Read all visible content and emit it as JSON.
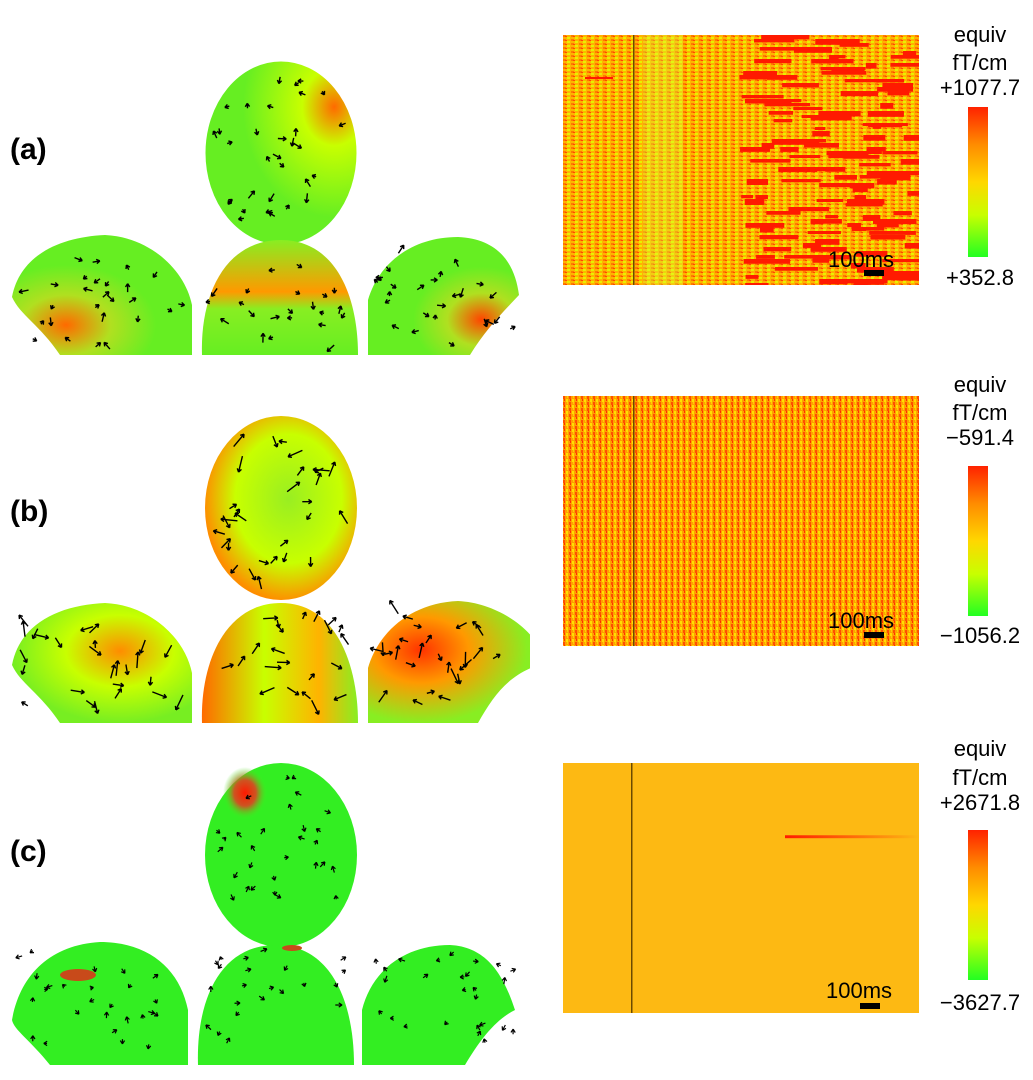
{
  "panels": [
    {
      "label": "(a)",
      "colorbar": {
        "title_line1": "equiv",
        "title_line2": "fT/cm",
        "max": "+1077.7",
        "min": "+352.8"
      },
      "scale_label": "100ms"
    },
    {
      "label": "(b)",
      "colorbar": {
        "title_line1": "equiv",
        "title_line2": "fT/cm",
        "max": "−591.4",
        "min": "−1056.2"
      },
      "scale_label": "100ms"
    },
    {
      "label": "(c)",
      "colorbar": {
        "title_line1": "equiv",
        "title_line2": "fT/cm",
        "max": "+2671.8",
        "min": "−3627.7"
      },
      "scale_label": "100ms"
    }
  ],
  "colors": {
    "colormap_top": "#ff2200",
    "colormap_upper": "#ff8c00",
    "colormap_mid": "#ffd700",
    "colormap_lower": "#c8ff00",
    "colormap_bottom": "#22ff22",
    "head_surface": "#44ee22",
    "raster_base_c": "#fdb913"
  },
  "icons": {
    "arrow": "vector-arrow-icon"
  }
}
